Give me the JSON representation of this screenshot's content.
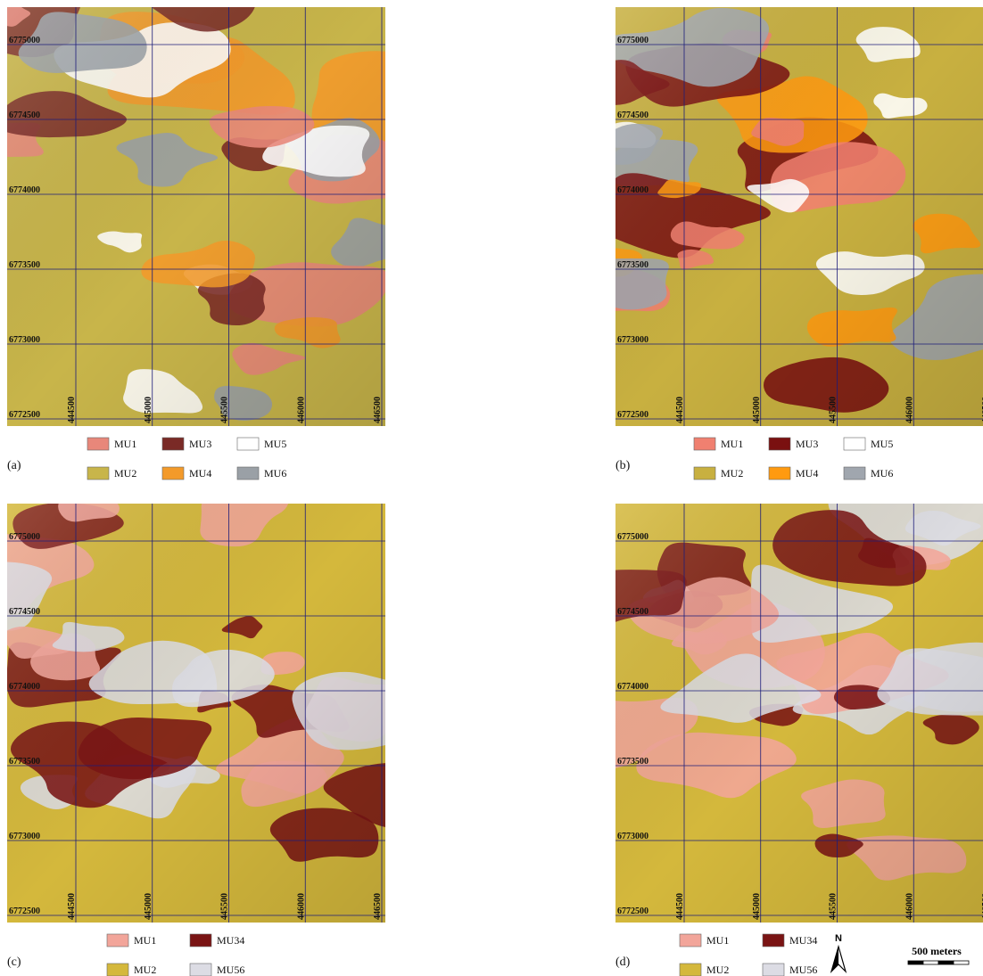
{
  "panels": [
    {
      "label": "(a)",
      "y_ticks": [
        6775000,
        6774500,
        6774000,
        6773500,
        6773000,
        6772500
      ],
      "x_ticks": [
        444500,
        445000,
        445500,
        446000,
        446500
      ],
      "legend": [
        {
          "name": "MU1",
          "color": "#e8877a"
        },
        {
          "name": "MU3",
          "color": "#7a2a26"
        },
        {
          "name": "MU5",
          "color": "#ffffff"
        },
        {
          "name": "MU2",
          "color": "#c8b54a"
        },
        {
          "name": "MU4",
          "color": "#f39a2a"
        },
        {
          "name": "MU6",
          "color": "#9aa0a6"
        }
      ]
    },
    {
      "label": "(b)",
      "y_ticks": [
        6775000,
        6774500,
        6774000,
        6773500,
        6773000,
        6772500
      ],
      "x_ticks": [
        444500,
        445000,
        445500,
        446000,
        446500
      ],
      "legend": [
        {
          "name": "MU1",
          "color": "#f08070"
        },
        {
          "name": "MU3",
          "color": "#7a1010"
        },
        {
          "name": "MU5",
          "color": "#ffffff"
        },
        {
          "name": "MU2",
          "color": "#c8b040"
        },
        {
          "name": "MU4",
          "color": "#ff9a10"
        },
        {
          "name": "MU6",
          "color": "#a0a6ae"
        }
      ]
    },
    {
      "label": "(c)",
      "y_ticks": [
        6775000,
        6774500,
        6774000,
        6773500,
        6773000,
        6772500
      ],
      "x_ticks": [
        444500,
        445000,
        445500,
        446000,
        446500
      ],
      "legend": [
        {
          "name": "MU1",
          "color": "#f2a59a"
        },
        {
          "name": "MU34",
          "color": "#7a1414"
        },
        {
          "name": "MU2",
          "color": "#d4b83c"
        },
        {
          "name": "MU56",
          "color": "#dcdce4"
        }
      ]
    },
    {
      "label": "(d)",
      "y_ticks": [
        6775000,
        6774500,
        6774000,
        6773500,
        6773000,
        6772500
      ],
      "x_ticks": [
        444500,
        445000,
        445500,
        446000,
        446500
      ],
      "legend": [
        {
          "name": "MU1",
          "color": "#f2a59a"
        },
        {
          "name": "MU34",
          "color": "#7a1414"
        },
        {
          "name": "MU2",
          "color": "#d4b83c"
        },
        {
          "name": "MU56",
          "color": "#dcdce4"
        }
      ]
    }
  ],
  "north_arrow": "N",
  "scale_bar": "500 meters"
}
